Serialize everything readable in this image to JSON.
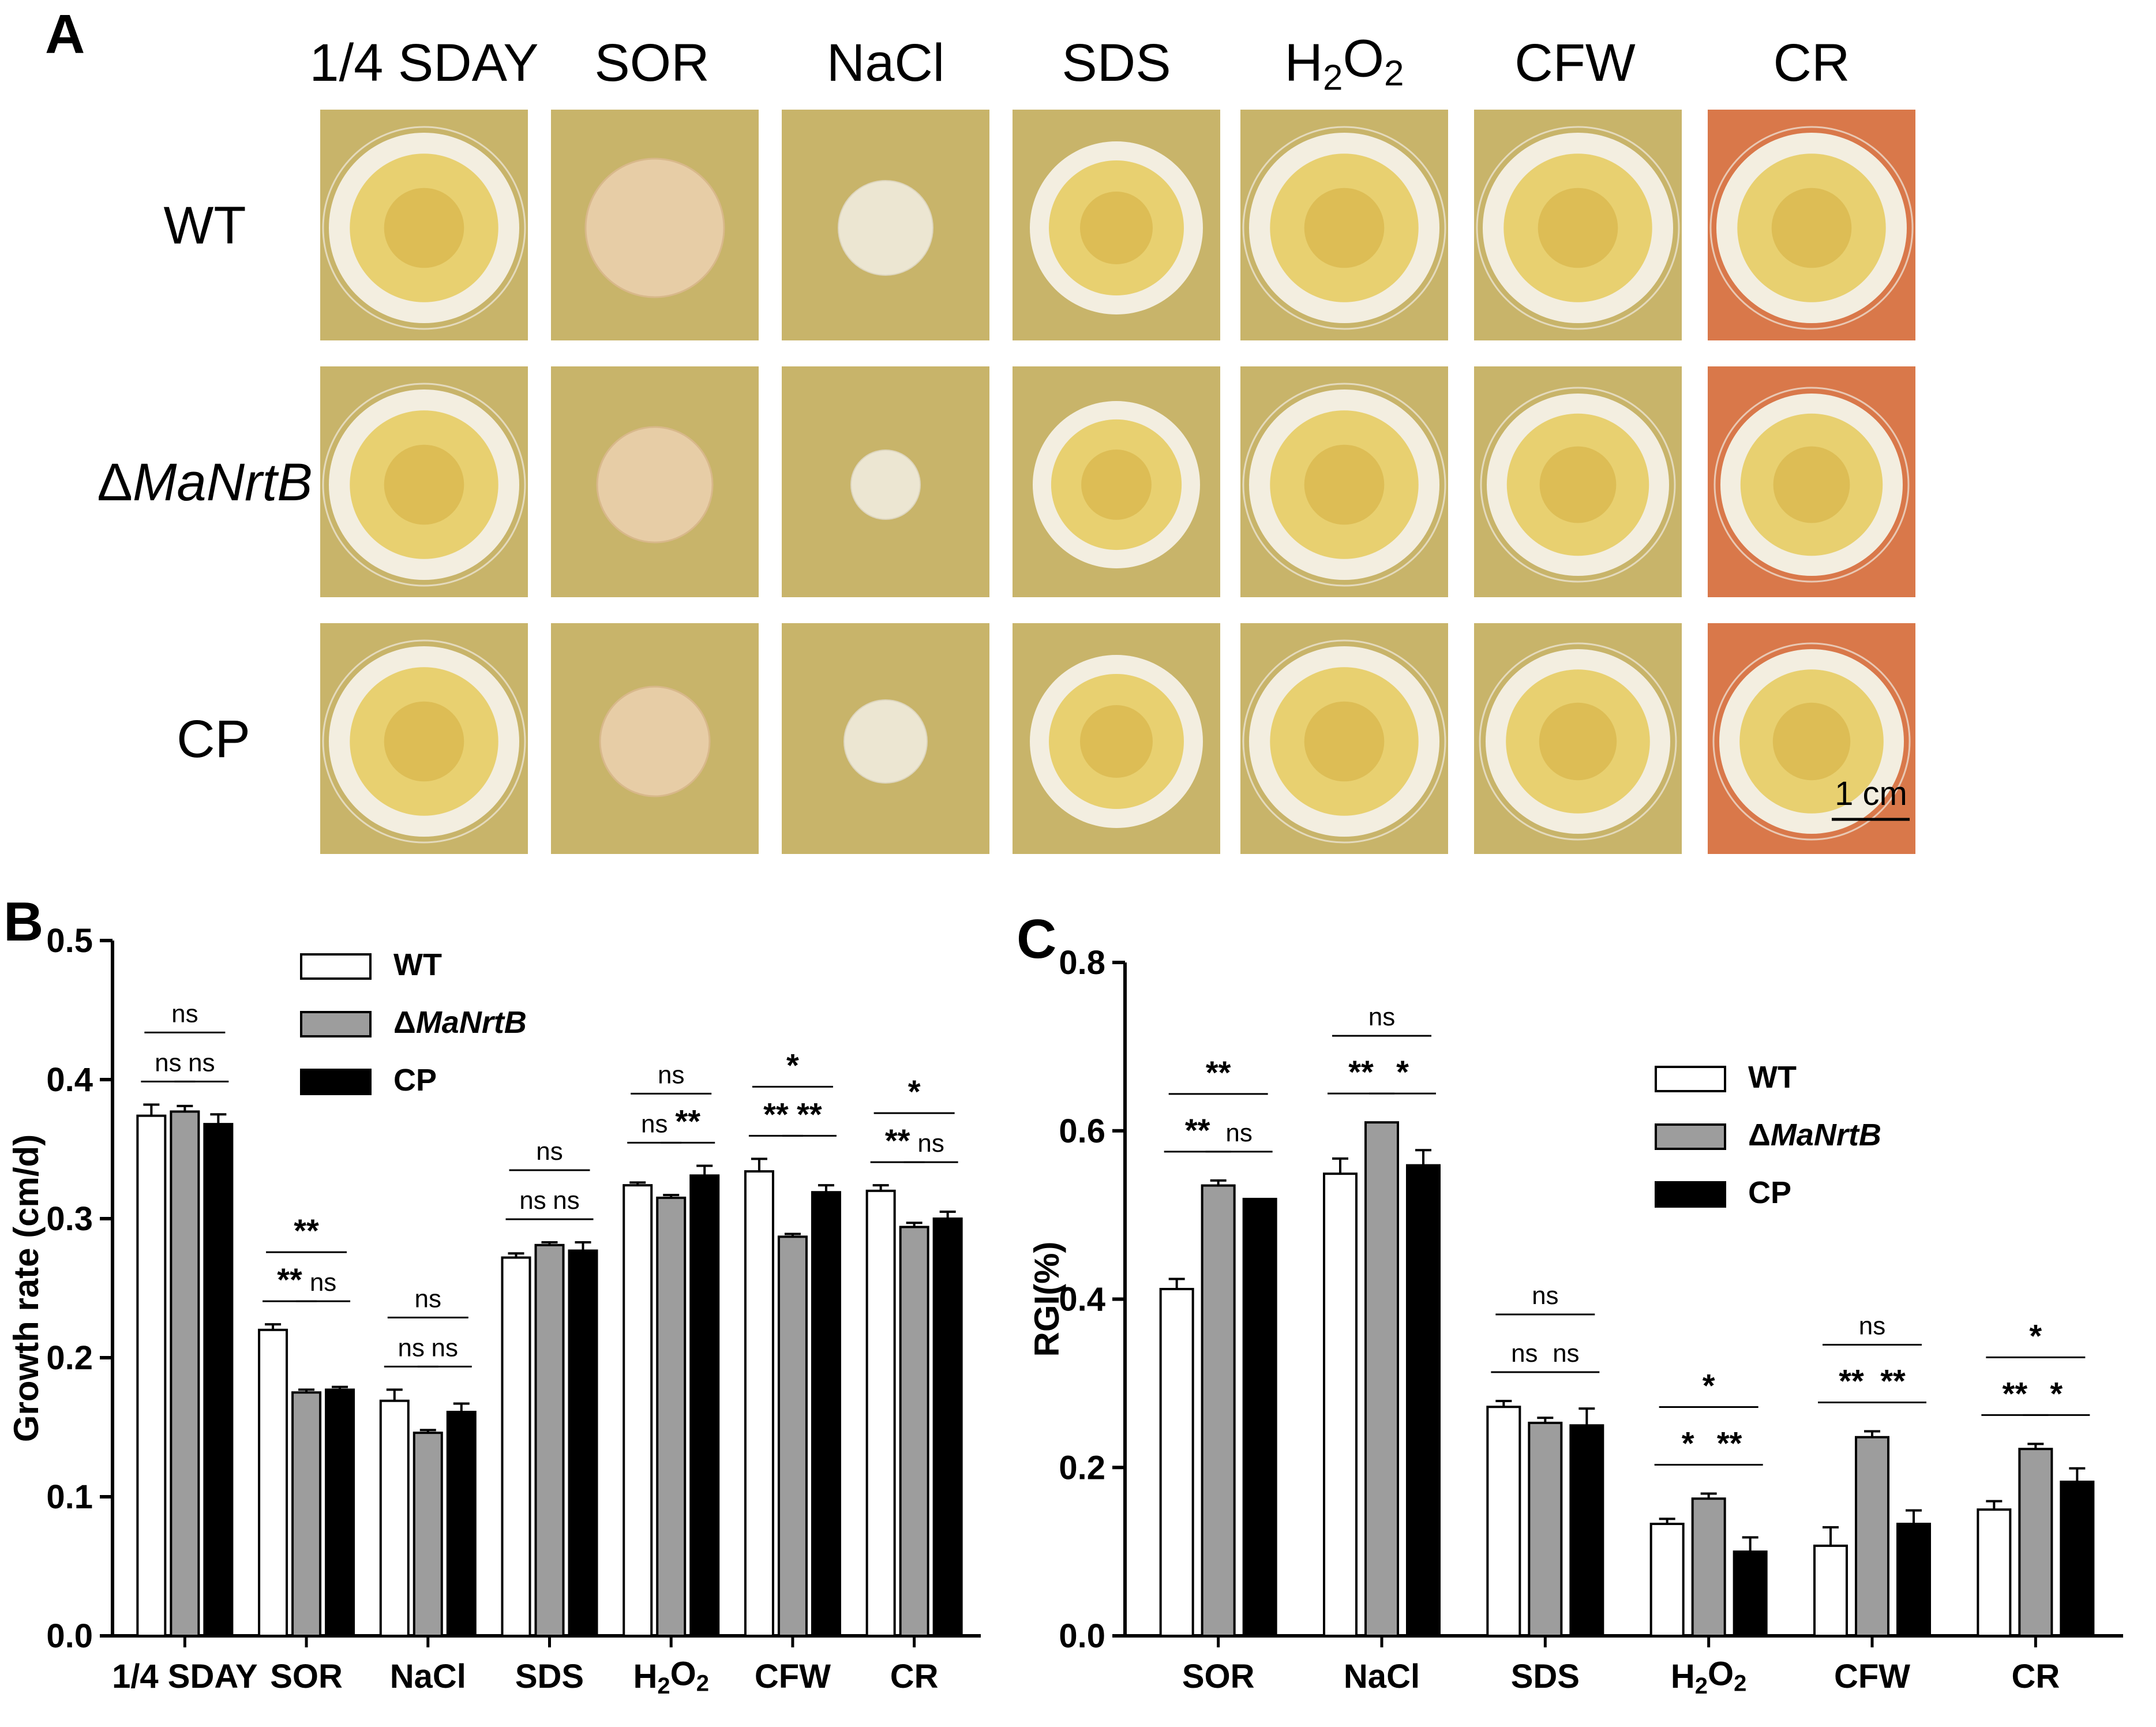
{
  "panel_a": {
    "letter": "A",
    "columns": [
      "1/4 SDAY",
      "SOR",
      "NaCl",
      "SDS",
      "H2O2",
      "CFW",
      "CR"
    ],
    "rows": [
      "WT",
      "ΔMaNrtB",
      "CP"
    ],
    "scale_bar": "1 cm",
    "plate_colors": {
      "yellow_plate": "#c8b46a",
      "cr_plate": "#d9784a",
      "colony_center": "#e8d070",
      "colony_rim": "#f3eee0"
    }
  },
  "chart_data": [
    {
      "panel": "B",
      "type": "bar",
      "title": "",
      "xlabel": "",
      "ylabel": "Growth rate (cm/d)",
      "ylim": [
        0,
        0.5
      ],
      "yticks": [
        "0.0",
        "0.1",
        "0.2",
        "0.3",
        "0.4",
        "0.5"
      ],
      "categories": [
        "1/4 SDAY",
        "SOR",
        "NaCl",
        "SDS",
        "H2O2",
        "CFW",
        "CR"
      ],
      "series": [
        {
          "name": "WT",
          "fill": "#ffffff",
          "values": [
            0.374,
            0.22,
            0.169,
            0.272,
            0.324,
            0.334,
            0.32
          ],
          "errors": [
            0.008,
            0.004,
            0.008,
            0.003,
            0.002,
            0.009,
            0.004
          ]
        },
        {
          "name": "ΔMaNrtB",
          "fill": "#9d9d9d",
          "values": [
            0.377,
            0.175,
            0.146,
            0.281,
            0.315,
            0.287,
            0.294
          ],
          "errors": [
            0.004,
            0.002,
            0.002,
            0.002,
            0.002,
            0.002,
            0.003
          ]
        },
        {
          "name": "CP",
          "fill": "#000000",
          "values": [
            0.368,
            0.177,
            0.161,
            0.277,
            0.331,
            0.319,
            0.3
          ],
          "errors": [
            0.007,
            0.002,
            0.006,
            0.006,
            0.007,
            0.005,
            0.005
          ]
        }
      ],
      "legend": [
        "WT",
        "ΔMaNrtB",
        "CP"
      ],
      "significance": [
        {
          "pair": "WT-CP",
          "labels": [
            "ns",
            "**",
            "ns",
            "ns",
            "ns",
            "*",
            "*"
          ]
        },
        {
          "pair": "WT-ΔMaNrtB",
          "labels": [
            "ns",
            "**",
            "ns",
            "ns",
            "ns",
            "**",
            "**"
          ]
        },
        {
          "pair": "ΔMaNrtB-CP",
          "labels": [
            "ns",
            "ns",
            "ns",
            "ns",
            "**",
            "**",
            "ns"
          ]
        }
      ]
    },
    {
      "panel": "C",
      "type": "bar",
      "title": "",
      "xlabel": "",
      "ylabel": "RGI(%)",
      "ylim": [
        0,
        0.8
      ],
      "yticks": [
        "0.0",
        "0.2",
        "0.4",
        "0.6",
        "0.8"
      ],
      "categories": [
        "SOR",
        "NaCl",
        "SDS",
        "H2O2",
        "CFW",
        "CR"
      ],
      "series": [
        {
          "name": "WT",
          "fill": "#ffffff",
          "values": [
            0.412,
            0.549,
            0.272,
            0.133,
            0.107,
            0.15
          ],
          "errors": [
            0.012,
            0.018,
            0.007,
            0.006,
            0.022,
            0.01
          ]
        },
        {
          "name": "ΔMaNrtB",
          "fill": "#9d9d9d",
          "values": [
            0.535,
            0.61,
            0.253,
            0.163,
            0.236,
            0.222
          ],
          "errors": [
            0.006,
            0.0,
            0.006,
            0.006,
            0.007,
            0.006
          ]
        },
        {
          "name": "CP",
          "fill": "#000000",
          "values": [
            0.519,
            0.559,
            0.25,
            0.1,
            0.133,
            0.183
          ],
          "errors": [
            0.0,
            0.018,
            0.02,
            0.017,
            0.016,
            0.016
          ]
        }
      ],
      "legend": [
        "WT",
        "ΔMaNrtB",
        "CP"
      ],
      "significance": [
        {
          "pair": "WT-CP",
          "labels": [
            "**",
            "ns",
            "ns",
            "*",
            "ns",
            "*"
          ]
        },
        {
          "pair": "WT-ΔMaNrtB",
          "labels": [
            "**",
            "**",
            "ns",
            "*",
            "**",
            "**"
          ]
        },
        {
          "pair": "ΔMaNrtB-CP",
          "labels": [
            "ns",
            "*",
            "ns",
            "**",
            "**",
            "*"
          ]
        }
      ]
    }
  ],
  "panel_b": {
    "letter": "B"
  },
  "panel_c": {
    "letter": "C"
  }
}
